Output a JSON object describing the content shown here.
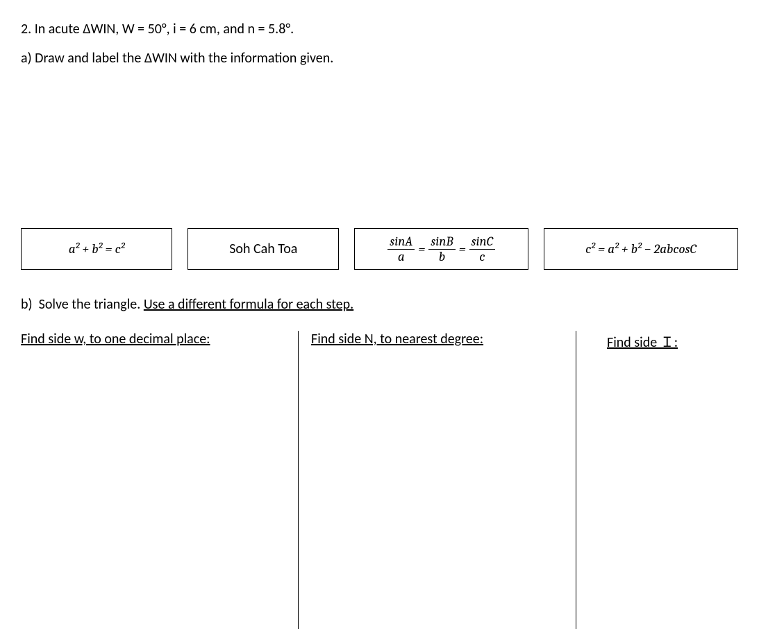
{
  "colors": {
    "text": "#000000",
    "background": "#ffffff",
    "border": "#000000"
  },
  "font": {
    "body_family": "Calibri",
    "math_family": "Cambria Math",
    "body_size_pt": 15,
    "math_size_pt": 14
  },
  "question": {
    "number": "2.",
    "text_pre": "In acute ΔWIN, W = 50°, i = 6 cm, and n = 5.8°.",
    "full": "2.  In acute ΔWIN, W = 50°, i = 6 cm, and n = 5.8°."
  },
  "part_a": {
    "label": "a)",
    "text": "Draw and label the ΔWIN with the information given.",
    "full": "a)  Draw and label the ΔWIN with the information given."
  },
  "formulas": {
    "pythagoras": "a² + b² = c²",
    "sohcahtoa": "Soh Cah Toa",
    "law_of_sines": {
      "sinA": "sinA",
      "sinB": "sinB",
      "sinC": "sinC",
      "a": "a",
      "b": "b",
      "c": "c",
      "eq": "="
    },
    "law_of_cosines": "c² = a² + b² − 2abcosC"
  },
  "part_b": {
    "label": "b)",
    "text_plain": "Solve the triangle.  ",
    "text_underlined": "Use a different formula for each step.",
    "columns": {
      "col1": "Find side w, to one decimal place:",
      "col2": "Find side N, to nearest degree:",
      "col3": "Find side Ｉ:"
    }
  }
}
